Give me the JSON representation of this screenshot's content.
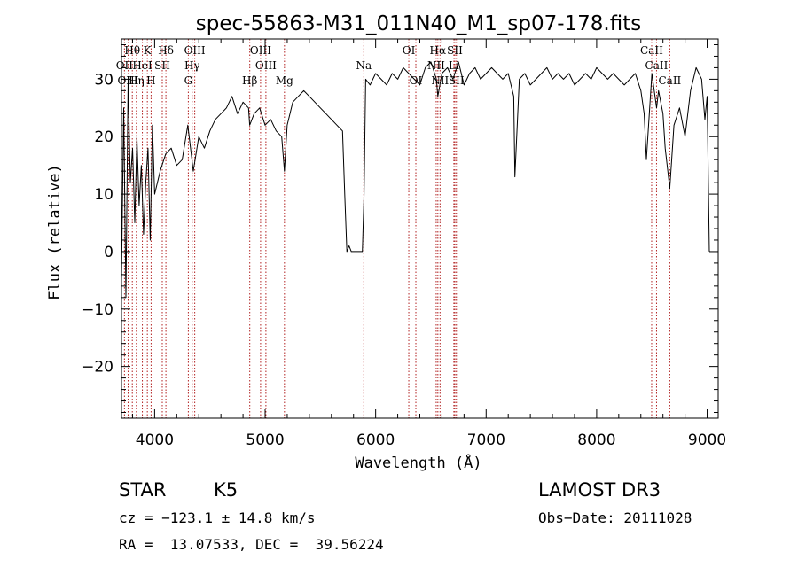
{
  "chart_data": {
    "type": "line",
    "title": "spec-55863-M31_011N40_M1_sp07-178.fits",
    "xlabel": "Wavelength (Å)",
    "ylabel": "Flux (relative)",
    "xlim": [
      3700,
      9100
    ],
    "ylim": [
      -29,
      37
    ],
    "xticks": [
      4000,
      5000,
      6000,
      7000,
      8000,
      9000
    ],
    "yticks": [
      -20,
      -10,
      0,
      10,
      20,
      30
    ],
    "xtick_labels": [
      "4000",
      "5000",
      "6000",
      "7000",
      "8000",
      "9000"
    ],
    "ytick_labels": [
      "−20",
      "−10",
      "0",
      "10",
      "20",
      "30"
    ],
    "series": [
      {
        "name": "flux",
        "x": [
          3700,
          3720,
          3740,
          3760,
          3780,
          3800,
          3820,
          3840,
          3860,
          3880,
          3900,
          3920,
          3940,
          3960,
          3980,
          4000,
          4050,
          4100,
          4150,
          4200,
          4250,
          4300,
          4350,
          4400,
          4450,
          4500,
          4550,
          4600,
          4650,
          4700,
          4750,
          4800,
          4850,
          4860,
          4900,
          4950,
          5000,
          5050,
          5100,
          5150,
          5175,
          5200,
          5250,
          5300,
          5350,
          5400,
          5450,
          5500,
          5550,
          5600,
          5650,
          5700,
          5720,
          5740,
          5760,
          5780,
          5800,
          5850,
          5880,
          5895,
          5910,
          5950,
          6000,
          6050,
          6100,
          6150,
          6200,
          6250,
          6300,
          6350,
          6400,
          6450,
          6500,
          6550,
          6563,
          6600,
          6650,
          6700,
          6750,
          6800,
          6850,
          6900,
          6950,
          7000,
          7050,
          7100,
          7150,
          7200,
          7250,
          7260,
          7300,
          7350,
          7400,
          7450,
          7500,
          7550,
          7600,
          7650,
          7700,
          7750,
          7800,
          7850,
          7900,
          7950,
          8000,
          8050,
          8100,
          8150,
          8200,
          8250,
          8300,
          8350,
          8400,
          8430,
          8450,
          8500,
          8542,
          8560,
          8600,
          8620,
          8662,
          8700,
          8750,
          8800,
          8850,
          8900,
          8950,
          8980,
          9000,
          9020
        ],
        "y": [
          -5,
          25,
          -8,
          30,
          12,
          18,
          5,
          20,
          8,
          15,
          3,
          12,
          18,
          2,
          22,
          10,
          14,
          17,
          18,
          15,
          16,
          22,
          14,
          20,
          18,
          21,
          23,
          24,
          25,
          27,
          24,
          26,
          25,
          22,
          24,
          25,
          22,
          23,
          21,
          20,
          14,
          22,
          26,
          27,
          28,
          27,
          26,
          25,
          24,
          23,
          22,
          21,
          10,
          0,
          1,
          0,
          0,
          0,
          0,
          10,
          30,
          29,
          31,
          30,
          29,
          31,
          30,
          32,
          31,
          30,
          29,
          32,
          33,
          30,
          27,
          31,
          32,
          30,
          33,
          29,
          31,
          32,
          30,
          31,
          32,
          31,
          30,
          31,
          27,
          13,
          30,
          31,
          29,
          30,
          31,
          32,
          30,
          31,
          30,
          31,
          29,
          30,
          31,
          30,
          32,
          31,
          30,
          31,
          30,
          29,
          30,
          31,
          28,
          24,
          16,
          31,
          25,
          28,
          24,
          18,
          11,
          22,
          25,
          20,
          28,
          32,
          30,
          23,
          27,
          0
        ]
      }
    ],
    "line_markers": [
      {
        "label": "Hθ",
        "x": 3798,
        "row": 1
      },
      {
        "label": "K",
        "x": 3934,
        "row": 1
      },
      {
        "label": "Hδ",
        "x": 4102,
        "row": 1
      },
      {
        "label": "OIII",
        "x": 4363,
        "row": 1
      },
      {
        "label": "OIII",
        "x": 4959,
        "row": 1
      },
      {
        "label": "OI",
        "x": 6300,
        "row": 1
      },
      {
        "label": "Hα",
        "x": 6563,
        "row": 1
      },
      {
        "label": "SII",
        "x": 6717,
        "row": 1
      },
      {
        "label": "CaII",
        "x": 8498,
        "row": 1
      },
      {
        "label": "OII",
        "x": 3727,
        "row": 2
      },
      {
        "label": "HeI",
        "x": 3889,
        "row": 2
      },
      {
        "label": "SII",
        "x": 4069,
        "row": 2
      },
      {
        "label": "Hγ",
        "x": 4340,
        "row": 2
      },
      {
        "label": "OIII",
        "x": 5007,
        "row": 2
      },
      {
        "label": "Na",
        "x": 5893,
        "row": 2
      },
      {
        "label": "NII",
        "x": 6548,
        "row": 2
      },
      {
        "label": "Li",
        "x": 6708,
        "row": 2
      },
      {
        "label": "CaII",
        "x": 8542,
        "row": 2
      },
      {
        "label": "OIII",
        "x": 3760,
        "row": 3
      },
      {
        "label": "Hη",
        "x": 3835,
        "row": 3
      },
      {
        "label": "H",
        "x": 3968,
        "row": 3
      },
      {
        "label": "G",
        "x": 4305,
        "row": 3
      },
      {
        "label": "Hβ",
        "x": 4861,
        "row": 3
      },
      {
        "label": "Mg",
        "x": 5175,
        "row": 3
      },
      {
        "label": "OI",
        "x": 6364,
        "row": 3
      },
      {
        "label": "NII",
        "x": 6583,
        "row": 3
      },
      {
        "label": "SII",
        "x": 6731,
        "row": 3
      },
      {
        "label": "CaII",
        "x": 8662,
        "row": 3
      }
    ]
  },
  "info": {
    "object_class": "STAR",
    "subclass": "K5",
    "survey": "LAMOST DR3",
    "velocity": "cz = −123.1 ± 14.8 km/s",
    "obs_date": "Obs−Date: 20111028",
    "coords": "RA =  13.07533, DEC =  39.56224"
  },
  "colors": {
    "spectrum": "#000000",
    "marker": "#b22222",
    "axes": "#000000"
  }
}
